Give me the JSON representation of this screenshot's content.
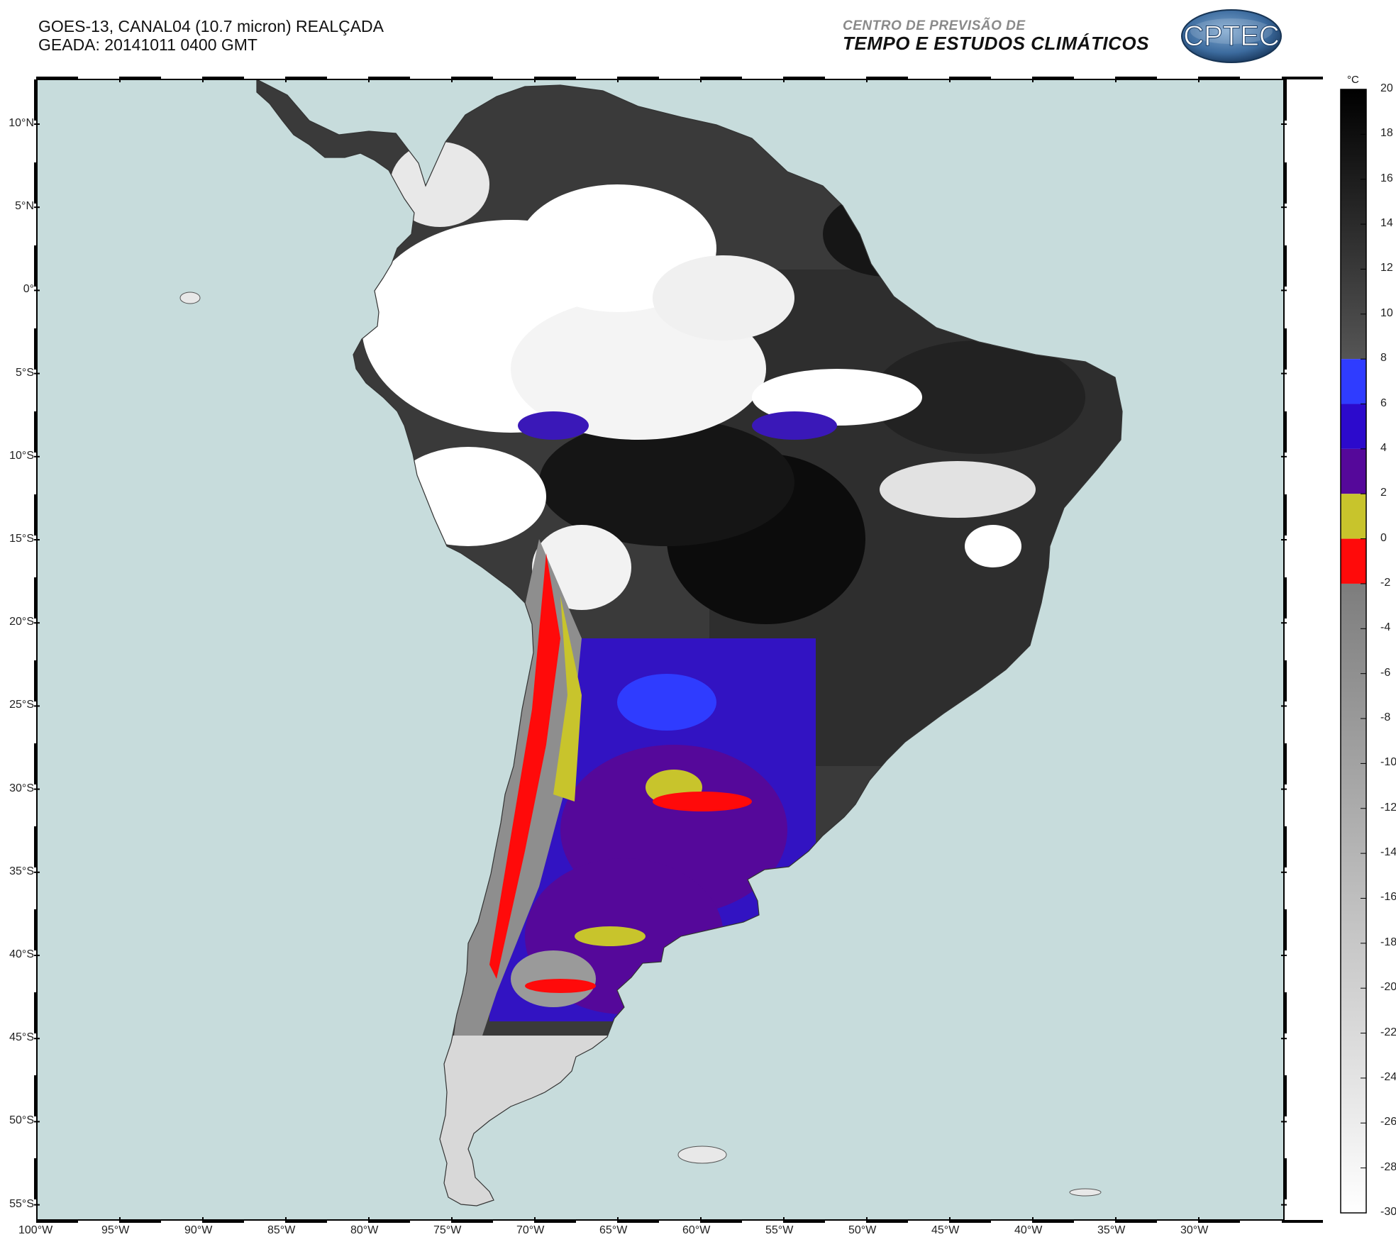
{
  "header": {
    "title_line1": "GOES-13, CANAL04 (10.7 micron) REALÇADA",
    "title_line2": "GEADA: 20141011 0400 GMT",
    "institution_line1": "CENTRO DE PREVISÃO DE",
    "institution_line2": "TEMPO E ESTUDOS CLIMÁTICOS",
    "logo_text": "CPTEC"
  },
  "map": {
    "lon_range": [
      -100,
      -25
    ],
    "lat_range": [
      -56,
      12.5
    ],
    "ocean_color": "#c7dcdc",
    "lat_labels": [
      "10°N",
      "5°N",
      "0°",
      "5°S",
      "10°S",
      "15°S",
      "20°S",
      "25°S",
      "30°S",
      "35°S",
      "40°S",
      "45°S",
      "50°S",
      "55°S"
    ],
    "lon_labels": [
      "100°W",
      "95°W",
      "90°W",
      "85°W",
      "80°W",
      "75°W",
      "70°W",
      "65°W",
      "60°W",
      "55°W",
      "50°W",
      "45°W",
      "40°W",
      "35°W",
      "30°W"
    ]
  },
  "colorbar": {
    "unit": "°C",
    "labels": [
      "20",
      "18",
      "16",
      "14",
      "12",
      "10",
      "8",
      "6",
      "4",
      "2",
      "0",
      "-2",
      "-4",
      "-6",
      "-8",
      "-10",
      "-12",
      "-14",
      "-16",
      "-18",
      "-20",
      "-22",
      "-24",
      "-26",
      "-28",
      "-30"
    ],
    "segments": [
      {
        "from": 20,
        "to": 8,
        "color": "gradient-dark"
      },
      {
        "from": 8,
        "to": 6,
        "color": "#2f3cff"
      },
      {
        "from": 6,
        "to": 4,
        "color": "#2c0acc"
      },
      {
        "from": 4,
        "to": 2,
        "color": "#55089a"
      },
      {
        "from": 2,
        "to": 0,
        "color": "#c8c42c"
      },
      {
        "from": 0,
        "to": -2,
        "color": "#ff0a0a"
      },
      {
        "from": -2,
        "to": -30,
        "color": "gradient-gray"
      }
    ]
  }
}
